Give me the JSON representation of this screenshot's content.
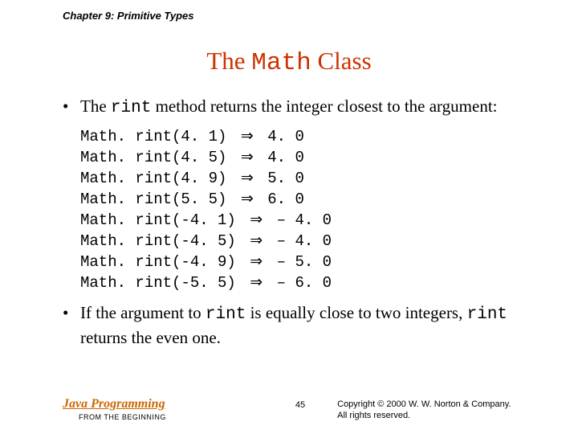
{
  "chapter_header": "Chapter 9: Primitive Types",
  "title_pre": "The ",
  "title_mono": "Math",
  "title_post": " Class",
  "bullet1_pre": "The ",
  "bullet1_mono": "rint",
  "bullet1_post": " method returns the integer closest to the argument:",
  "code": [
    {
      "call": "Math. rint(4. 1)",
      "result": " 4. 0"
    },
    {
      "call": "Math. rint(4. 5)",
      "result": " 4. 0"
    },
    {
      "call": "Math. rint(4. 9)",
      "result": " 5. 0"
    },
    {
      "call": "Math. rint(5. 5)",
      "result": " 6. 0"
    },
    {
      "call": "Math. rint(-4. 1)",
      "result": " – 4. 0"
    },
    {
      "call": "Math. rint(-4. 5)",
      "result": " – 4. 0"
    },
    {
      "call": "Math. rint(-4. 9)",
      "result": " – 5. 0"
    },
    {
      "call": "Math. rint(-5. 5)",
      "result": " – 6. 0"
    }
  ],
  "bullet2_pre": "If the argument to ",
  "bullet2_mono1": "rint",
  "bullet2_mid": " is equally close to two integers, ",
  "bullet2_mono2": "rint",
  "bullet2_post": " returns the even one.",
  "footer": {
    "java_prog": "Java Programming",
    "from_beginning": "FROM THE BEGINNING",
    "page_num": "45",
    "copyright_line1": "Copyright © 2000 W. W. Norton & Company.",
    "copyright_line2": "All rights reserved."
  },
  "styling": {
    "title_color": "#cc3300",
    "java_prog_color": "#cc6600",
    "text_color": "#000000",
    "background_color": "#ffffff",
    "body_font": "Georgia, Times New Roman, serif",
    "mono_font": "Courier New, monospace",
    "sans_font": "Arial, Helvetica, sans-serif",
    "title_fontsize": 31,
    "body_fontsize": 21,
    "code_fontsize": 19,
    "arrow_symbol": "⇒"
  }
}
